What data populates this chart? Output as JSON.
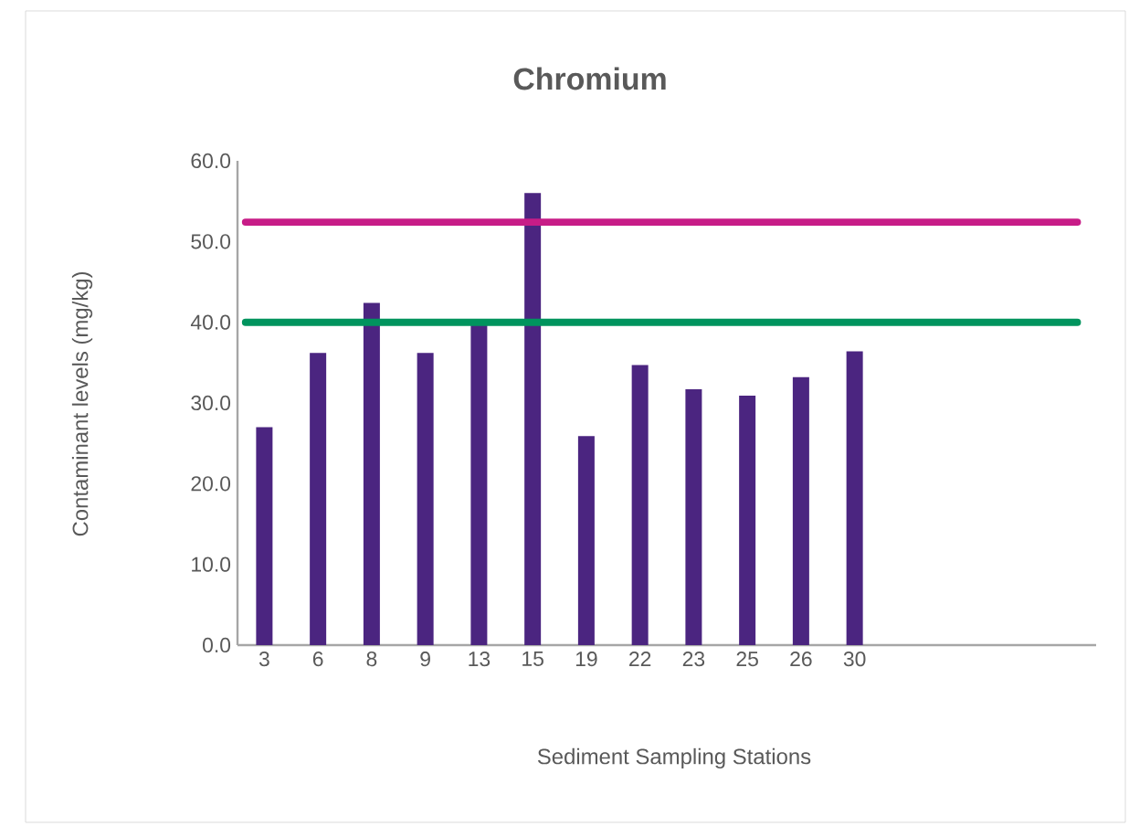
{
  "chart_data": {
    "type": "bar",
    "title": "Chromium",
    "xlabel": "Sediment Sampling Stations",
    "ylabel": "Contaminant levels (mg/kg)",
    "categories": [
      "3",
      "6",
      "8",
      "9",
      "13",
      "15",
      "19",
      "22",
      "23",
      "25",
      "26",
      "30",
      null,
      null,
      null,
      null
    ],
    "values": [
      27.0,
      36.2,
      42.4,
      36.2,
      39.8,
      56.0,
      25.9,
      34.7,
      31.7,
      30.9,
      33.2,
      36.4,
      null,
      null,
      null,
      null
    ],
    "color": "#4b2580",
    "ylim": [
      0,
      60
    ],
    "yticks": [
      {
        "value": 0,
        "label": "0.0"
      },
      {
        "value": 10,
        "label": "10.0"
      },
      {
        "value": 20,
        "label": "20.0"
      },
      {
        "value": 30,
        "label": "30.0"
      },
      {
        "value": 40,
        "label": "40.0"
      },
      {
        "value": 50,
        "label": "50.0"
      },
      {
        "value": 60,
        "label": "60.0"
      }
    ],
    "ref_lines": [
      {
        "axis": "y",
        "value": 52.4,
        "color": "#c71c87"
      },
      {
        "axis": "y",
        "value": 40,
        "color": "#00945e"
      }
    ],
    "grid": false
  }
}
